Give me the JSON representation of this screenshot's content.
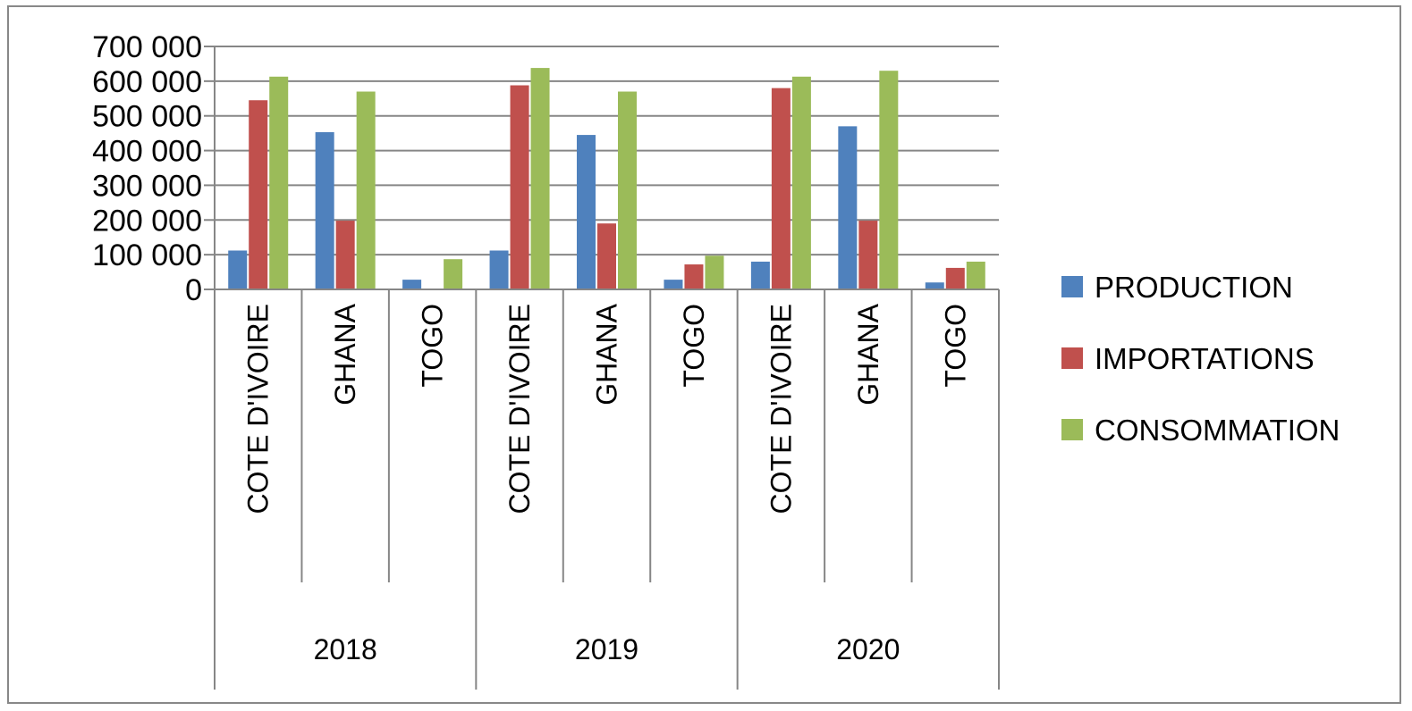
{
  "chart_data": {
    "type": "bar",
    "groups": [
      "2018",
      "2019",
      "2020"
    ],
    "categories": [
      "COTE D'IVOIRE",
      "GHANA",
      "TOGO",
      "COTE D'IVOIRE",
      "GHANA",
      "TOGO",
      "COTE D'IVOIRE",
      "GHANA",
      "TOGO"
    ],
    "category_groups": [
      "2018",
      "2018",
      "2018",
      "2019",
      "2019",
      "2019",
      "2020",
      "2020",
      "2020"
    ],
    "series": [
      {
        "name": "PRODUCTION",
        "color": "#4F81BD",
        "values": [
          112000,
          453000,
          28000,
          112000,
          445000,
          28000,
          80000,
          470000,
          20000
        ]
      },
      {
        "name": "IMPORTATIONS",
        "color": "#C0504D",
        "values": [
          545000,
          198000,
          0,
          588000,
          190000,
          72000,
          580000,
          198000,
          62000
        ]
      },
      {
        "name": "CONSOMMATION",
        "color": "#9BBB59",
        "values": [
          613000,
          570000,
          87000,
          638000,
          570000,
          97000,
          613000,
          630000,
          80000
        ]
      }
    ],
    "ylim": [
      0,
      700000
    ],
    "yticks": [
      0,
      100000,
      200000,
      300000,
      400000,
      500000,
      600000,
      700000
    ],
    "ytick_labels": [
      "0",
      "100 000",
      "200 000",
      "300 000",
      "400 000",
      "500 000",
      "600 000",
      "700 000"
    ],
    "title": "",
    "xlabel": "",
    "ylabel": "",
    "grid": true,
    "legend_position": "right"
  }
}
